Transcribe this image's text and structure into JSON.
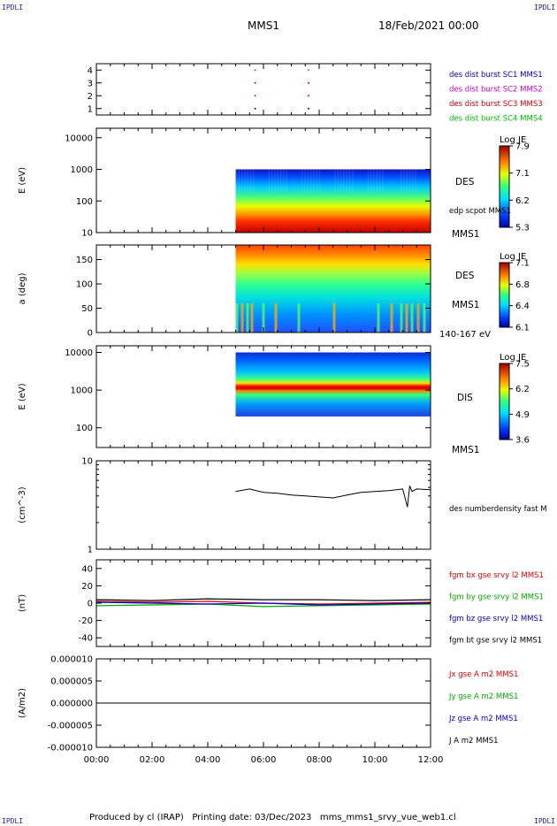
{
  "corner_tag": "IPDLI",
  "header": {
    "spacecraft": "MMS1",
    "date": "18/Feb/2021 00:00"
  },
  "footer": "Produced by cl (IRAP)   Printing date: 03/Dec/2023   mms_mms1_srvy_vue_web1.cl",
  "x_ticks": [
    "00:00",
    "02:00",
    "04:00",
    "06:00",
    "08:00",
    "10:00",
    "12:00"
  ],
  "panels": {
    "burst": {
      "y_ticks": [
        "1",
        "2",
        "3",
        "4"
      ],
      "legend": [
        {
          "label": "des dist burst SC1 MMS1",
          "color": "#0000cc"
        },
        {
          "label": "des dist burst SC2 MMS2",
          "color": "#cc00cc"
        },
        {
          "label": "des dist burst SC3 MMS3",
          "color": "#cc0000"
        },
        {
          "label": "des dist burst SC4 MMS4",
          "color": "#00bb00"
        }
      ]
    },
    "des_energy": {
      "ylabel": "E (eV)",
      "y_ticks": [
        "10",
        "100",
        "1000",
        "10000"
      ],
      "species": "DES",
      "note": "edp scpot MMS1",
      "sc": "MMS1",
      "cbar_title": "Log JE",
      "cbar_ticks": [
        "7.9",
        "7.1",
        "6.2",
        "5.3"
      ]
    },
    "des_pitch": {
      "ylabel": "a (deg)",
      "y_ticks": [
        "0",
        "50",
        "100",
        "150"
      ],
      "species": "DES",
      "sc": "MMS1",
      "range": "140-167 eV",
      "cbar_title": "Log JE",
      "cbar_ticks": [
        "7.1",
        "6.8",
        "6.4",
        "6.1"
      ]
    },
    "dis_energy": {
      "ylabel": "E (eV)",
      "y_ticks": [
        "100",
        "1000",
        "10000"
      ],
      "species": "DIS",
      "sc": "MMS1",
      "cbar_title": "Log JE",
      "cbar_ticks": [
        "7.5",
        "6.2",
        "4.9",
        "3.6"
      ]
    },
    "density": {
      "ylabel": "(cm^-3)",
      "y_ticks": [
        "1",
        "10"
      ],
      "legend": [
        {
          "label": "des numberdensity fast M",
          "color": "#000000"
        }
      ]
    },
    "fgm": {
      "ylabel": "(nT)",
      "y_ticks": [
        "-40",
        "-20",
        "0",
        "20",
        "40"
      ],
      "legend": [
        {
          "label": "fgm bx gse srvy l2 MMS1",
          "color": "#dd0000"
        },
        {
          "label": "fgm by gse srvy l2 MMS1",
          "color": "#00aa00"
        },
        {
          "label": "fgm bz gse srvy l2 MMS1",
          "color": "#0000cc"
        },
        {
          "label": "fgm bt gse srvy l2 MMS1",
          "color": "#000000"
        }
      ]
    },
    "current": {
      "ylabel": "(A/m2)",
      "y_ticks": [
        "-0.000010",
        "-0.000005",
        "0.000000",
        "0.000005",
        "0.000010"
      ],
      "legend": [
        {
          "label": "Jx gse A m2 MMS1",
          "color": "#dd0000"
        },
        {
          "label": "Jy gse A m2 MMS1",
          "color": "#00aa00"
        },
        {
          "label": "Jz gse A m2 MMS1",
          "color": "#0000cc"
        },
        {
          "label": "J A m2 MMS1",
          "color": "#000000"
        }
      ]
    }
  },
  "chart_data": [
    {
      "type": "scatter",
      "panel": "burst",
      "xlabel": "",
      "ylabel": "",
      "xlim": [
        "00:00",
        "12:00"
      ],
      "ylim": [
        0.5,
        4.5
      ],
      "series": [
        {
          "name": "des dist burst SC1 MMS1",
          "x": [
            "05:42",
            "07:37"
          ],
          "y": [
            1,
            1
          ]
        },
        {
          "name": "des dist burst SC2 MMS2",
          "x": [
            "05:42",
            "07:37"
          ],
          "y": [
            2,
            2
          ]
        },
        {
          "name": "des dist burst SC3 MMS3",
          "x": [
            "05:42",
            "07:37"
          ],
          "y": [
            3,
            3
          ]
        },
        {
          "name": "des dist burst SC4 MMS4",
          "x": [
            "05:42",
            "07:37"
          ],
          "y": [
            4,
            4
          ]
        }
      ]
    },
    {
      "type": "heatmap",
      "panel": "des_energy",
      "ylabel": "E (eV)",
      "yscale": "log",
      "ylim": [
        10,
        20000
      ],
      "x_range": [
        "05:00",
        "12:00"
      ],
      "y_range": [
        10,
        1000
      ],
      "colorbar": {
        "title": "Log JE",
        "range": [
          5.3,
          7.9
        ]
      }
    },
    {
      "type": "heatmap",
      "panel": "des_pitch",
      "ylabel": "a (deg)",
      "ylim": [
        0,
        180
      ],
      "x_range": [
        "05:00",
        "12:00"
      ],
      "y_range": [
        0,
        180
      ],
      "colorbar": {
        "title": "Log JE",
        "range": [
          6.1,
          7.1
        ]
      }
    },
    {
      "type": "heatmap",
      "panel": "dis_energy",
      "ylabel": "E (eV)",
      "yscale": "log",
      "ylim": [
        30,
        15000
      ],
      "x_range": [
        "05:00",
        "12:00"
      ],
      "y_range": [
        200,
        10000
      ],
      "colorbar": {
        "title": "Log JE",
        "range": [
          3.6,
          7.5
        ]
      }
    },
    {
      "type": "line",
      "panel": "density",
      "ylabel": "(cm^-3)",
      "yscale": "log",
      "ylim": [
        1,
        10
      ],
      "series": [
        {
          "name": "des numberdensity fast M",
          "x": [
            "05:00",
            "05:30",
            "06:00",
            "06:30",
            "07:00",
            "07:30",
            "08:00",
            "08:30",
            "09:00",
            "09:30",
            "10:00",
            "10:30",
            "11:00",
            "11:10",
            "11:15",
            "11:20",
            "11:30",
            "12:00"
          ],
          "y": [
            4.5,
            4.8,
            4.4,
            4.3,
            4.1,
            4.0,
            3.9,
            3.8,
            4.1,
            4.4,
            4.5,
            4.6,
            4.8,
            3.0,
            5.2,
            4.5,
            4.8,
            4.7
          ]
        }
      ]
    },
    {
      "type": "line",
      "panel": "fgm",
      "ylabel": "(nT)",
      "ylim": [
        -50,
        50
      ],
      "series": [
        {
          "name": "fgm bx gse srvy l2 MMS1",
          "x": [
            "00:00",
            "02:00",
            "04:00",
            "06:00",
            "08:00",
            "10:00",
            "12:00"
          ],
          "y": [
            2,
            1,
            2,
            0,
            -1,
            0,
            1
          ]
        },
        {
          "name": "fgm by gse srvy l2 MMS1",
          "x": [
            "00:00",
            "02:00",
            "04:00",
            "06:00",
            "08:00",
            "10:00",
            "12:00"
          ],
          "y": [
            -3,
            -2,
            -1,
            -4,
            -3,
            -2,
            -1
          ]
        },
        {
          "name": "fgm bz gse srvy l2 MMS1",
          "x": [
            "00:00",
            "02:00",
            "04:00",
            "06:00",
            "08:00",
            "10:00",
            "12:00"
          ],
          "y": [
            1,
            0,
            -1,
            0,
            -2,
            -1,
            0
          ]
        },
        {
          "name": "fgm bt gse srvy l2 MMS1",
          "x": [
            "00:00",
            "02:00",
            "04:00",
            "06:00",
            "08:00",
            "10:00",
            "12:00"
          ],
          "y": [
            4,
            3,
            5,
            4,
            4,
            3,
            4
          ]
        }
      ]
    },
    {
      "type": "line",
      "panel": "current",
      "ylabel": "(A/m2)",
      "ylim": [
        -1e-05,
        1e-05
      ],
      "series": [
        {
          "name": "J A m2 MMS1",
          "x": [
            "00:00",
            "12:00"
          ],
          "y": [
            0,
            0
          ]
        }
      ]
    }
  ]
}
